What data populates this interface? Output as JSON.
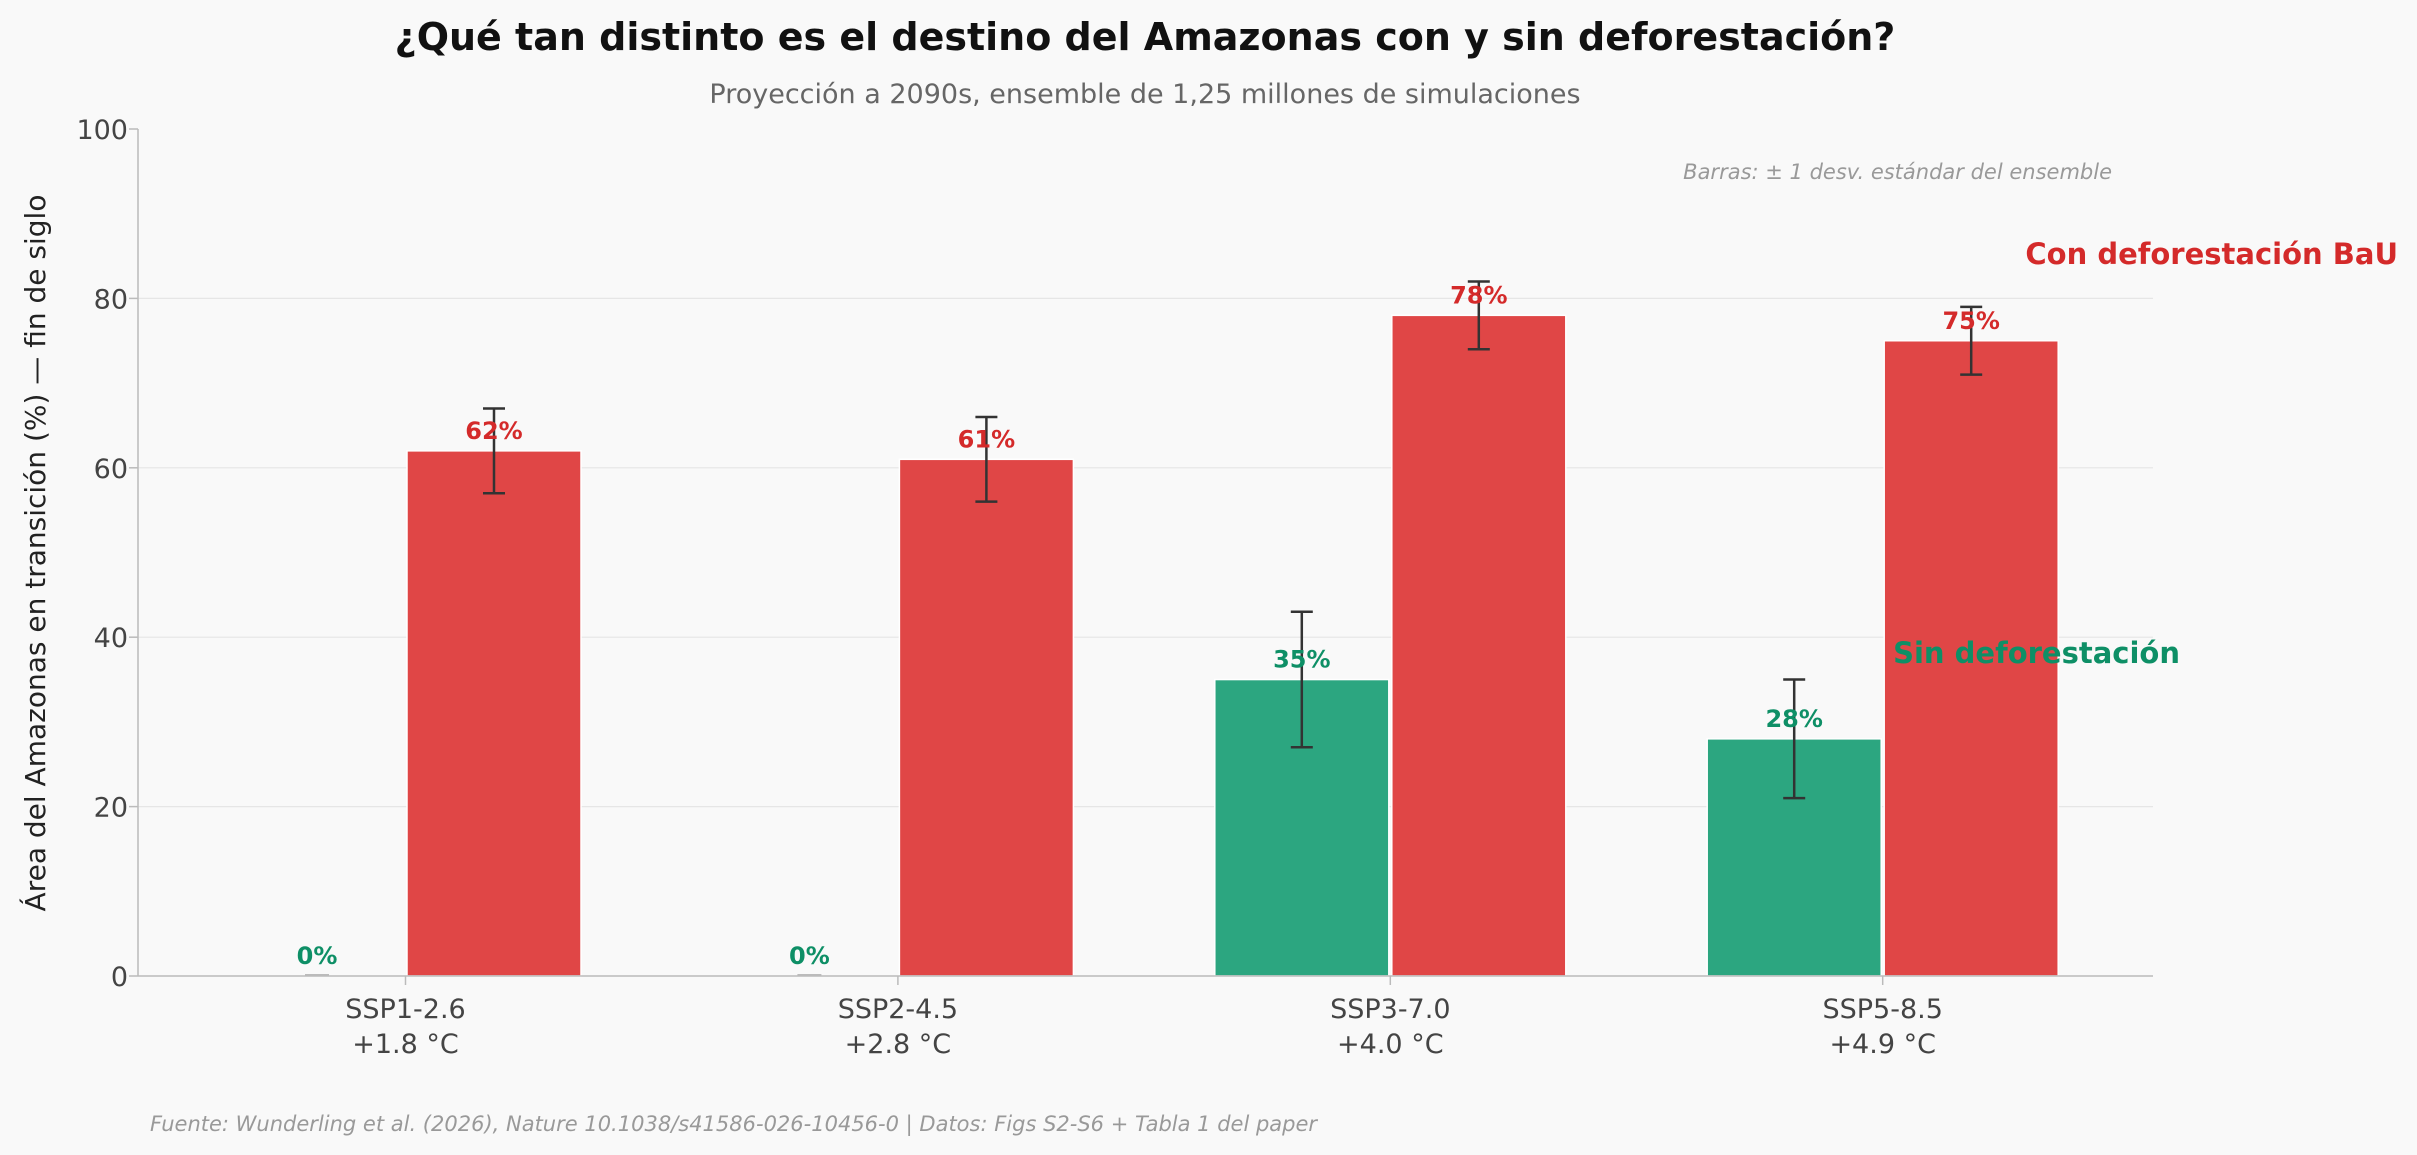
{
  "chart_data": {
    "type": "bar",
    "title": "¿Qué tan distinto es el destino del Amazonas con y sin deforestación?",
    "subtitle": "Proyección a 2090s, ensemble de 1,25 millones de simulaciones",
    "ylabel": "Área del Amazonas en transición (%) — fin de siglo",
    "xlabel": "",
    "ylim": [
      0,
      100
    ],
    "yticks": [
      "0",
      "20",
      "40",
      "60",
      "80",
      "100"
    ],
    "ytick_values": [
      0,
      20,
      40,
      60,
      80,
      100
    ],
    "grid": true,
    "categories": [
      {
        "scenario": "SSP1-2.6",
        "warming": "+1.8 °C"
      },
      {
        "scenario": "SSP2-4.5",
        "warming": "+2.8 °C"
      },
      {
        "scenario": "SSP3-7.0",
        "warming": "+4.0 °C"
      },
      {
        "scenario": "SSP5-8.5",
        "warming": "+4.9 °C"
      }
    ],
    "series": [
      {
        "name": "Sin deforestación",
        "color": "#2ca680",
        "label_color": "#0e8f66",
        "values": [
          0,
          0,
          35,
          28
        ],
        "labels": [
          "0%",
          "0%",
          "35%",
          "28%"
        ],
        "error": [
          null,
          null,
          [
            27,
            43
          ],
          [
            21,
            35
          ]
        ]
      },
      {
        "name": "Con deforestación BaU",
        "color": "#e04646",
        "label_color": "#d42a2a",
        "values": [
          62,
          61,
          78,
          75
        ],
        "labels": [
          "62%",
          "61%",
          "78%",
          "75%"
        ],
        "error": [
          [
            57,
            67
          ],
          [
            56,
            66
          ],
          [
            74,
            82
          ],
          [
            71,
            79
          ]
        ]
      }
    ],
    "legend_placement": "right, inline labels",
    "error_note": "Barras: ± 1 desv. estándar del ensemble",
    "source": "Fuente: Wunderling et al. (2026), Nature 10.1038/s41586-026-10456-0 | Datos: Figs S2-S6 + Tabla 1 del paper"
  }
}
